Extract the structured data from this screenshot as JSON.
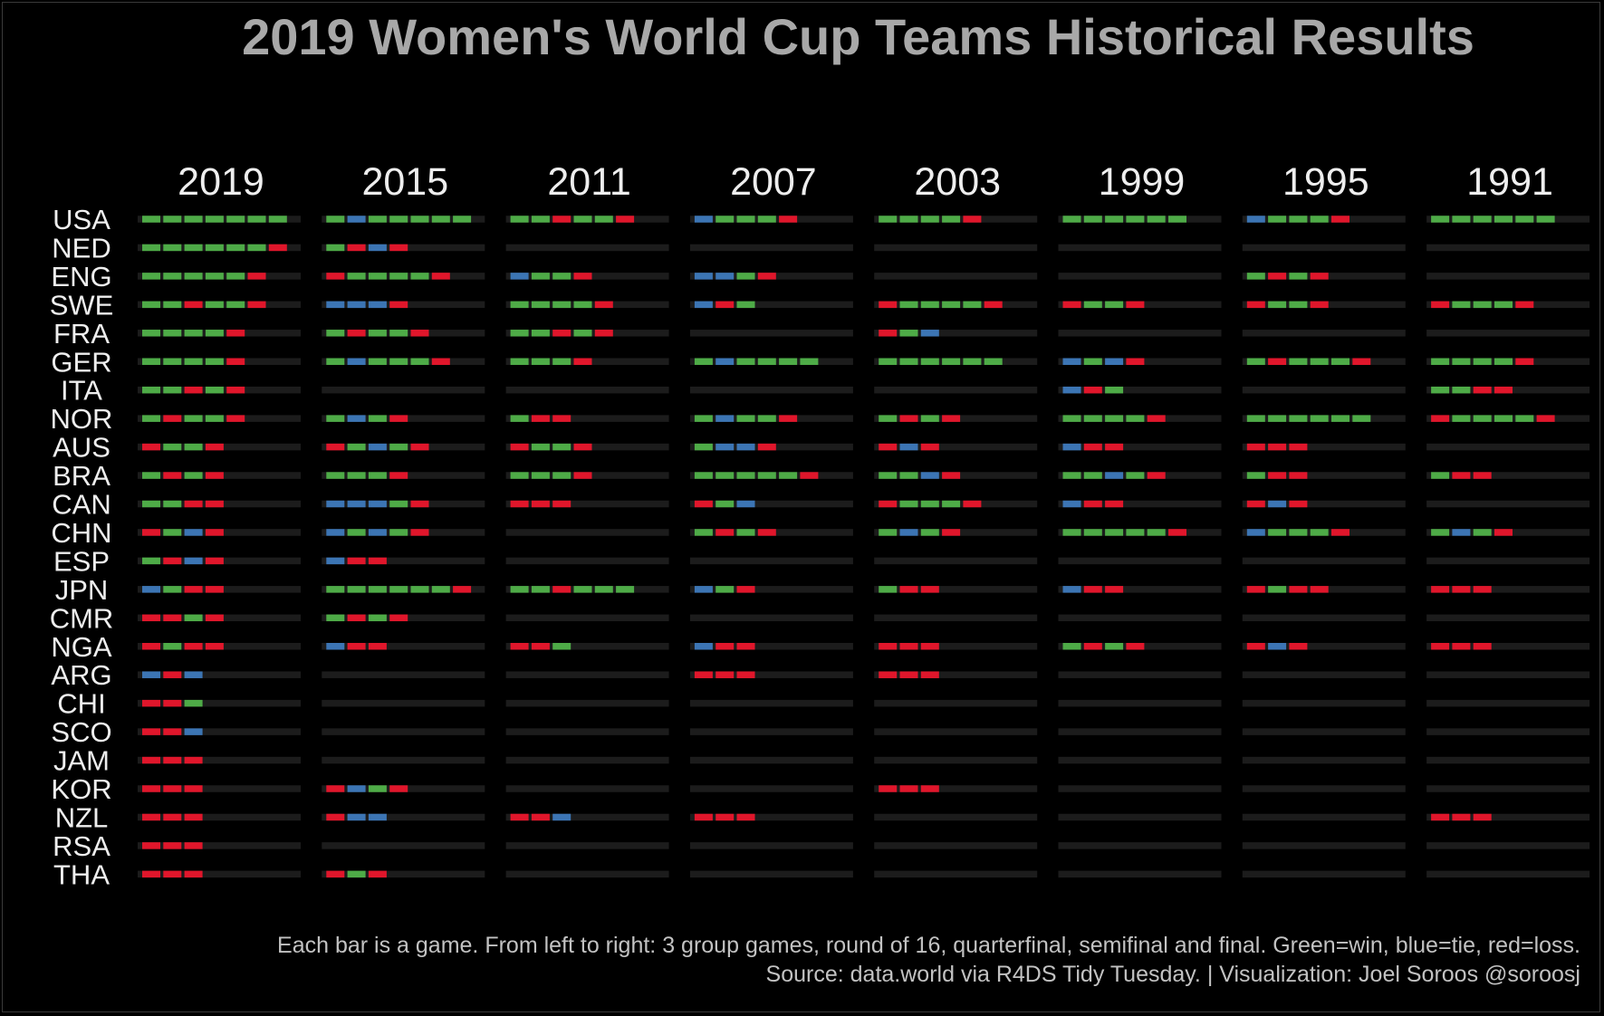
{
  "title": "2019 Women's World Cup Teams Historical Results",
  "caption_line1": "Each bar is a game. From left to right: 3 group games, round of 16, quarterfinal, semifinal and final.  Green=win, blue=tie, red=loss.",
  "caption_line2": "Source: data.world via R4DS Tidy Tuesday.   |   Visualization: Joel Soroos @soroosj",
  "colors": {
    "W": "#4eab47",
    "T": "#3c75b4",
    "L": "#e0162b",
    "track": "#1c1c1c",
    "text": "#eeeeee",
    "title": "#a8a8a8"
  },
  "chart_data": {
    "type": "heatmap",
    "title": "2019 Women's World Cup Teams Historical Results",
    "years": [
      "2019",
      "2015",
      "2011",
      "2007",
      "2003",
      "1999",
      "1995",
      "1991"
    ],
    "teams": [
      "USA",
      "NED",
      "ENG",
      "SWE",
      "FRA",
      "GER",
      "ITA",
      "NOR",
      "AUS",
      "BRA",
      "CAN",
      "CHN",
      "ESP",
      "JPN",
      "CMR",
      "NGA",
      "ARG",
      "CHI",
      "SCO",
      "JAM",
      "KOR",
      "NZL",
      "RSA",
      "THA"
    ],
    "legend": {
      "W": "win",
      "T": "tie",
      "L": "loss"
    },
    "results": {
      "USA": [
        "WWWWWWW",
        "WTWWWWW",
        "WWLWWL",
        "TWWWL",
        "WWWWL",
        "WWWWWW",
        "TWWWL",
        "WWWWWW"
      ],
      "NED": [
        "WWWWWWL",
        "WLTL",
        "",
        "",
        "",
        "",
        "",
        ""
      ],
      "ENG": [
        "WWWWWL",
        "LWWWWL",
        "TWWL",
        "TTWL",
        "",
        "",
        "WLWL",
        ""
      ],
      "SWE": [
        "WWLWWL",
        "TTTL",
        "WWWWL",
        "TLW",
        "LWWWWL",
        "LWWL",
        "LWWL",
        "LWWWL"
      ],
      "FRA": [
        "WWWWL",
        "WLWWL",
        "WWLWL",
        "",
        "LWT",
        "",
        "",
        ""
      ],
      "GER": [
        "WWWWL",
        "WTWWWL",
        "WWWL",
        "WTWWWW",
        "WWWWWW",
        "TWTL",
        "WLWWWL",
        "WWWWL"
      ],
      "ITA": [
        "WWLWL",
        "",
        "",
        "",
        "",
        "TLW",
        "",
        "WWLL"
      ],
      "NOR": [
        "WLWWL",
        "WTWL",
        "WLL",
        "WTWWL",
        "WLWL",
        "WWWWL",
        "WWWWWW",
        "LWWWWL"
      ],
      "AUS": [
        "LWWL",
        "LWTWL",
        "LWWL",
        "WTTL",
        "LTL",
        "TLL",
        "LLL",
        ""
      ],
      "BRA": [
        "WLWL",
        "WWWL",
        "WWWL",
        "WWWWWL",
        "WWTL",
        "WWTWL",
        "WLL",
        "WLL"
      ],
      "CAN": [
        "WWLL",
        "TTTWL",
        "LLL",
        "LWT",
        "LWWWL",
        "TLL",
        "LTL",
        ""
      ],
      "CHN": [
        "LWTL",
        "TWTWL",
        "",
        "WLWL",
        "WTWL",
        "WWWWWL",
        "TWWWL",
        "WTWL"
      ],
      "ESP": [
        "WLTL",
        "TLL",
        "",
        "",
        "",
        "",
        "",
        ""
      ],
      "JPN": [
        "TWLL",
        "WWWWWWL",
        "WWLWWW",
        "TWL",
        "WLL",
        "TLL",
        "LWLL",
        "LLL"
      ],
      "CMR": [
        "LLWL",
        "WLWL",
        "",
        "",
        "",
        "",
        "",
        ""
      ],
      "NGA": [
        "LWLL",
        "TLL",
        "LLW",
        "TLL",
        "LLL",
        "WLWL",
        "LTL",
        "LLL"
      ],
      "ARG": [
        "TLT",
        "",
        "",
        "LLL",
        "LLL",
        "",
        "",
        ""
      ],
      "CHI": [
        "LLW",
        "",
        "",
        "",
        "",
        "",
        "",
        ""
      ],
      "SCO": [
        "LLT",
        "",
        "",
        "",
        "",
        "",
        "",
        ""
      ],
      "JAM": [
        "LLL",
        "",
        "",
        "",
        "",
        "",
        "",
        ""
      ],
      "KOR": [
        "LLL",
        "LTWL",
        "",
        "",
        "LLL",
        "",
        "",
        ""
      ],
      "NZL": [
        "LLL",
        "LTT",
        "LLT",
        "LLL",
        "",
        "",
        "",
        "LLL"
      ],
      "RSA": [
        "LLL",
        "",
        "",
        "",
        "",
        "",
        "",
        ""
      ],
      "THA": [
        "LLL",
        "LWL",
        "",
        "",
        "",
        "",
        "",
        ""
      ]
    }
  }
}
